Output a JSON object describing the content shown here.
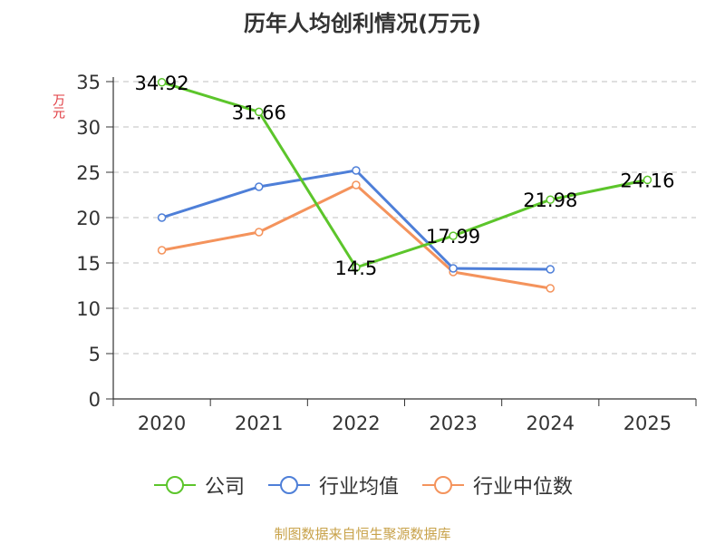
{
  "chart_data": {
    "type": "line",
    "title": "历年人均创利情况(万元)",
    "ylabel": "万元",
    "xlabel": "",
    "categories": [
      "2020",
      "2021",
      "2022",
      "2023",
      "2024",
      "2025"
    ],
    "ylim": [
      0,
      35
    ],
    "yticks": [
      0,
      5,
      10,
      15,
      20,
      25,
      30,
      35
    ],
    "grid": true,
    "legend_position": "bottom",
    "series": [
      {
        "name": "公司",
        "color": "#5cc52b",
        "values": [
          34.92,
          31.66,
          14.5,
          17.99,
          21.98,
          24.16
        ],
        "labels": [
          "34.92",
          "31.66",
          "14.5",
          "17.99",
          "21.98",
          "24.16"
        ]
      },
      {
        "name": "行业均值",
        "color": "#4e7fd8",
        "values": [
          20.0,
          23.4,
          25.2,
          14.4,
          14.3,
          null
        ]
      },
      {
        "name": "行业中位数",
        "color": "#f4935c",
        "values": [
          16.4,
          18.4,
          23.6,
          14.0,
          12.2,
          null
        ]
      }
    ]
  },
  "footer": {
    "source": "制图数据来自恒生聚源数据库"
  }
}
